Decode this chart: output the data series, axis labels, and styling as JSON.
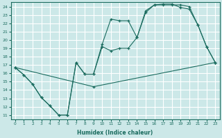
{
  "xlabel": "Humidex (Indice chaleur)",
  "xlim": [
    -0.5,
    23.5
  ],
  "ylim": [
    10.5,
    24.5
  ],
  "xticks": [
    0,
    1,
    2,
    3,
    4,
    5,
    6,
    7,
    8,
    9,
    10,
    11,
    12,
    13,
    14,
    15,
    16,
    17,
    18,
    19,
    20,
    21,
    22,
    23
  ],
  "yticks": [
    11,
    12,
    13,
    14,
    15,
    16,
    17,
    18,
    19,
    20,
    21,
    22,
    23,
    24
  ],
  "bg_color": "#cce8e8",
  "line_color": "#1a6b5e",
  "grid_color": "#ffffff",
  "line1_x": [
    0,
    1,
    2,
    3,
    4,
    5,
    6,
    7,
    8,
    9,
    10,
    11,
    12,
    13,
    14,
    15,
    16,
    17,
    18,
    19,
    20,
    21,
    22,
    23
  ],
  "line1_y": [
    16.7,
    15.8,
    14.7,
    13.1,
    12.1,
    11.0,
    11.0,
    17.3,
    15.9,
    15.9,
    19.2,
    18.7,
    19.0,
    19.0,
    20.3,
    23.3,
    24.2,
    24.3,
    24.3,
    23.9,
    23.7,
    21.8,
    19.2,
    17.3
  ],
  "line2_x": [
    0,
    1,
    2,
    3,
    4,
    5,
    6,
    7,
    8,
    9,
    10,
    11,
    12,
    13,
    14,
    15,
    16,
    17,
    18,
    19,
    20,
    21,
    22,
    23
  ],
  "line2_y": [
    16.7,
    15.8,
    14.7,
    13.1,
    12.1,
    11.0,
    11.0,
    17.3,
    15.9,
    15.9,
    19.5,
    22.5,
    22.3,
    22.3,
    20.3,
    23.5,
    24.2,
    24.2,
    24.2,
    24.2,
    24.0,
    21.8,
    19.2,
    17.3
  ],
  "line3_x": [
    0,
    9,
    23
  ],
  "line3_y": [
    16.7,
    14.4,
    17.3
  ]
}
